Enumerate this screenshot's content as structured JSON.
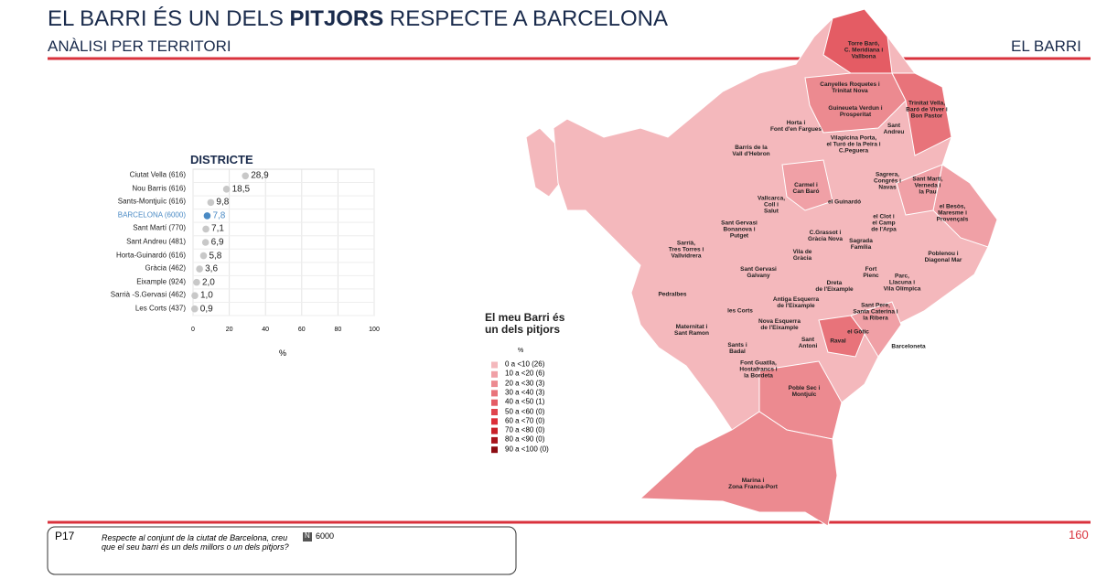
{
  "header": {
    "title_parts": [
      "EL BARRI ÉS UN DELS ",
      "PITJORS",
      " RESPECTE A BARCELONA"
    ],
    "subtitle": "ANÀLISI PER TERRITORI",
    "section": "EL BARRI"
  },
  "chart_data": {
    "type": "dot",
    "title": "DISTRICTE",
    "categories": [
      "Ciutat Vella (616)",
      "Nou Barris (616)",
      "Sants-Montjuïc (616)",
      "BARCELONA (6000)",
      "Sant Martí (770)",
      "Sant Andreu (481)",
      "Horta-Guinardó (616)",
      "Gràcia (462)",
      "Eixample (924)",
      "Sarrià -S.Gervasi (462)",
      "Les Corts (437)"
    ],
    "values": [
      28.9,
      18.5,
      9.8,
      7.8,
      7.1,
      6.9,
      5.8,
      3.6,
      2.0,
      1.0,
      0.9
    ],
    "value_labels": [
      "28,9",
      "18,5",
      "9,8",
      "7,8",
      "7,1",
      "6,9",
      "5,8",
      "3,6",
      "2,0",
      "1,0",
      "0,9"
    ],
    "point_colors": [
      "#c8c8c8",
      "#c8c8c8",
      "#c8c8c8",
      "#4a8ac4",
      "#c8c8c8",
      "#c8c8c8",
      "#c8c8c8",
      "#c8c8c8",
      "#c8c8c8",
      "#c8c8c8",
      "#c8c8c8"
    ],
    "xlim": [
      0,
      100
    ],
    "xticks": [
      0,
      20,
      40,
      60,
      80,
      100
    ],
    "xlabel": "%",
    "grid": true
  },
  "map": {
    "legend": {
      "title": "El meu Barri és\nun dels pitjors",
      "unit": "%",
      "items": [
        {
          "label": "0 a <10 (26)",
          "color": "#f4b8bc"
        },
        {
          "label": "10 a <20 (6)",
          "color": "#f0a0a6"
        },
        {
          "label": "20 a <30 (3)",
          "color": "#ec8a90"
        },
        {
          "label": "30 a <40 (3)",
          "color": "#e8737a"
        },
        {
          "label": "40 a <50 (1)",
          "color": "#e45c64"
        },
        {
          "label": "50 a <60 (0)",
          "color": "#e0454e"
        },
        {
          "label": "60 a <70 (0)",
          "color": "#dc2e38"
        },
        {
          "label": "70 a <80 (0)",
          "color": "#c82028"
        },
        {
          "label": "80 a <90 (0)",
          "color": "#a8141c"
        },
        {
          "label": "90 a <100 (0)",
          "color": "#8c0c12"
        }
      ]
    },
    "labels": [
      "Torre Baró,\nC. Meridiana i\nVallbona",
      "Canyelles Roquetes i\nTrinitat Nova",
      "Guineueta Verdun i\nProsperitat",
      "Trinitat Vella,\nBaró de Viver i\nBon Pastor",
      "Sant\nAndreu",
      "Horta i\nFont d'en Fargues",
      "Vilapicina Porta,\nel Turó de la Peira i\nC.Peguera",
      "Barris de la\nVall d'Hebron",
      "Sagrera,\nCongrés i\nNavas",
      "Sant Martí,\nVerneda i\nla Pau",
      "Carmel i\nCan Baró",
      "el Guinardó",
      "Vallcarca,\nColl i\nSalut",
      "el Besòs,\nMaresme i\nProvençals",
      "el Clot i\nel Camp\nde l'Arpa",
      "Sant Gervasi\nBonanova i\nPutget",
      "C.Grassot i\nGràcia Nova",
      "Sagrada\nFamília",
      "Sarrià,\nTres Torres i\nVallvidrera",
      "Vila de\nGràcia",
      "Poblenou i\nDiagonal Mar",
      "Sant Gervasi\nGalvany",
      "Fort\nPienc",
      "Parc,\nLlacuna i\nVila Olímpica",
      "Dreta\nde l'Eixample",
      "Pedralbes",
      "Antiga Esquerra\nde l'Eixample",
      "Sant Pere,\nSanta Caterina i\nla Ribera",
      "les Corts",
      "Nova Esquerra\nde l'Eixample",
      "Maternitat i\nSant Ramon",
      "el Gòtic",
      "Raval",
      "Sant\nAntoni",
      "Barceloneta",
      "Sants i\nBadal",
      "Font Guatlla,\nHostafrancs i\nla Bordeta",
      "Poble Sec i\nMontjuïc",
      "Marina i\nZona Franca-Port"
    ]
  },
  "footer": {
    "question_id": "P17",
    "question": "Respecte al conjunt de la ciutat de Barcelona, creu\nque el seu barri és un dels millors o un dels pitjors?",
    "n_icon": "N",
    "n": "6000",
    "page": "160"
  }
}
